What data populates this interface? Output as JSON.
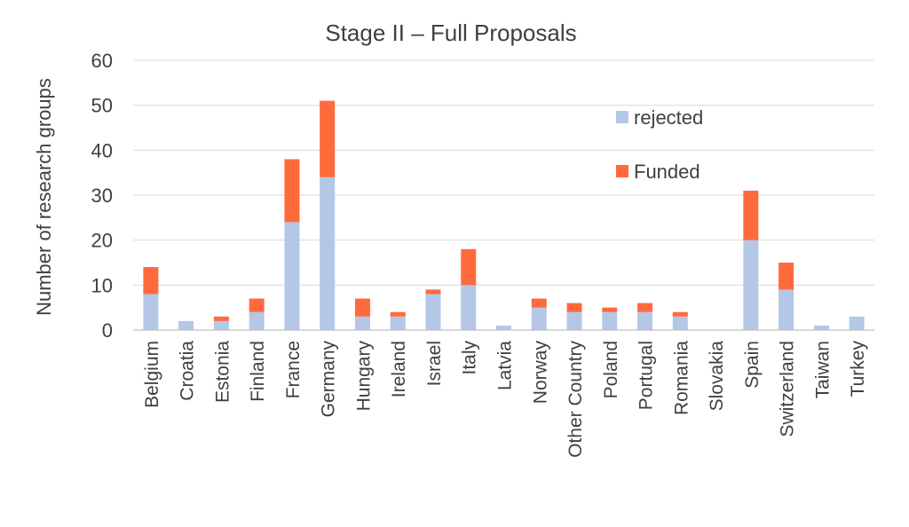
{
  "chart_data": {
    "type": "bar",
    "stacked": true,
    "title": "Stage II – Full Proposals",
    "xlabel": "",
    "ylabel": "Number of research groups",
    "ylim": [
      0,
      60
    ],
    "yticks": [
      0,
      10,
      20,
      30,
      40,
      50,
      60
    ],
    "grid": true,
    "legend_position": "top-right",
    "categories": [
      "Belgium",
      "Croatia",
      "Estonia",
      "Finland",
      "France",
      "Germany",
      "Hungary",
      "Ireland",
      "Israel",
      "Italy",
      "Latvia",
      "Norway",
      "Other Country",
      "Poland",
      "Portugal",
      "Romania",
      "Slovakia",
      "Spain",
      "Switzerland",
      "Taiwan",
      "Turkey"
    ],
    "series": [
      {
        "name": "rejected",
        "color": "#b4c7e7",
        "values": [
          8,
          2,
          2,
          4,
          24,
          34,
          3,
          3,
          8,
          10,
          1,
          5,
          4,
          4,
          4,
          3,
          0,
          20,
          9,
          1,
          3
        ]
      },
      {
        "name": "Funded",
        "color": "#ff6a3d",
        "values": [
          6,
          0,
          1,
          3,
          14,
          17,
          4,
          1,
          1,
          8,
          0,
          2,
          2,
          1,
          2,
          1,
          0,
          11,
          6,
          0,
          0
        ]
      }
    ]
  }
}
